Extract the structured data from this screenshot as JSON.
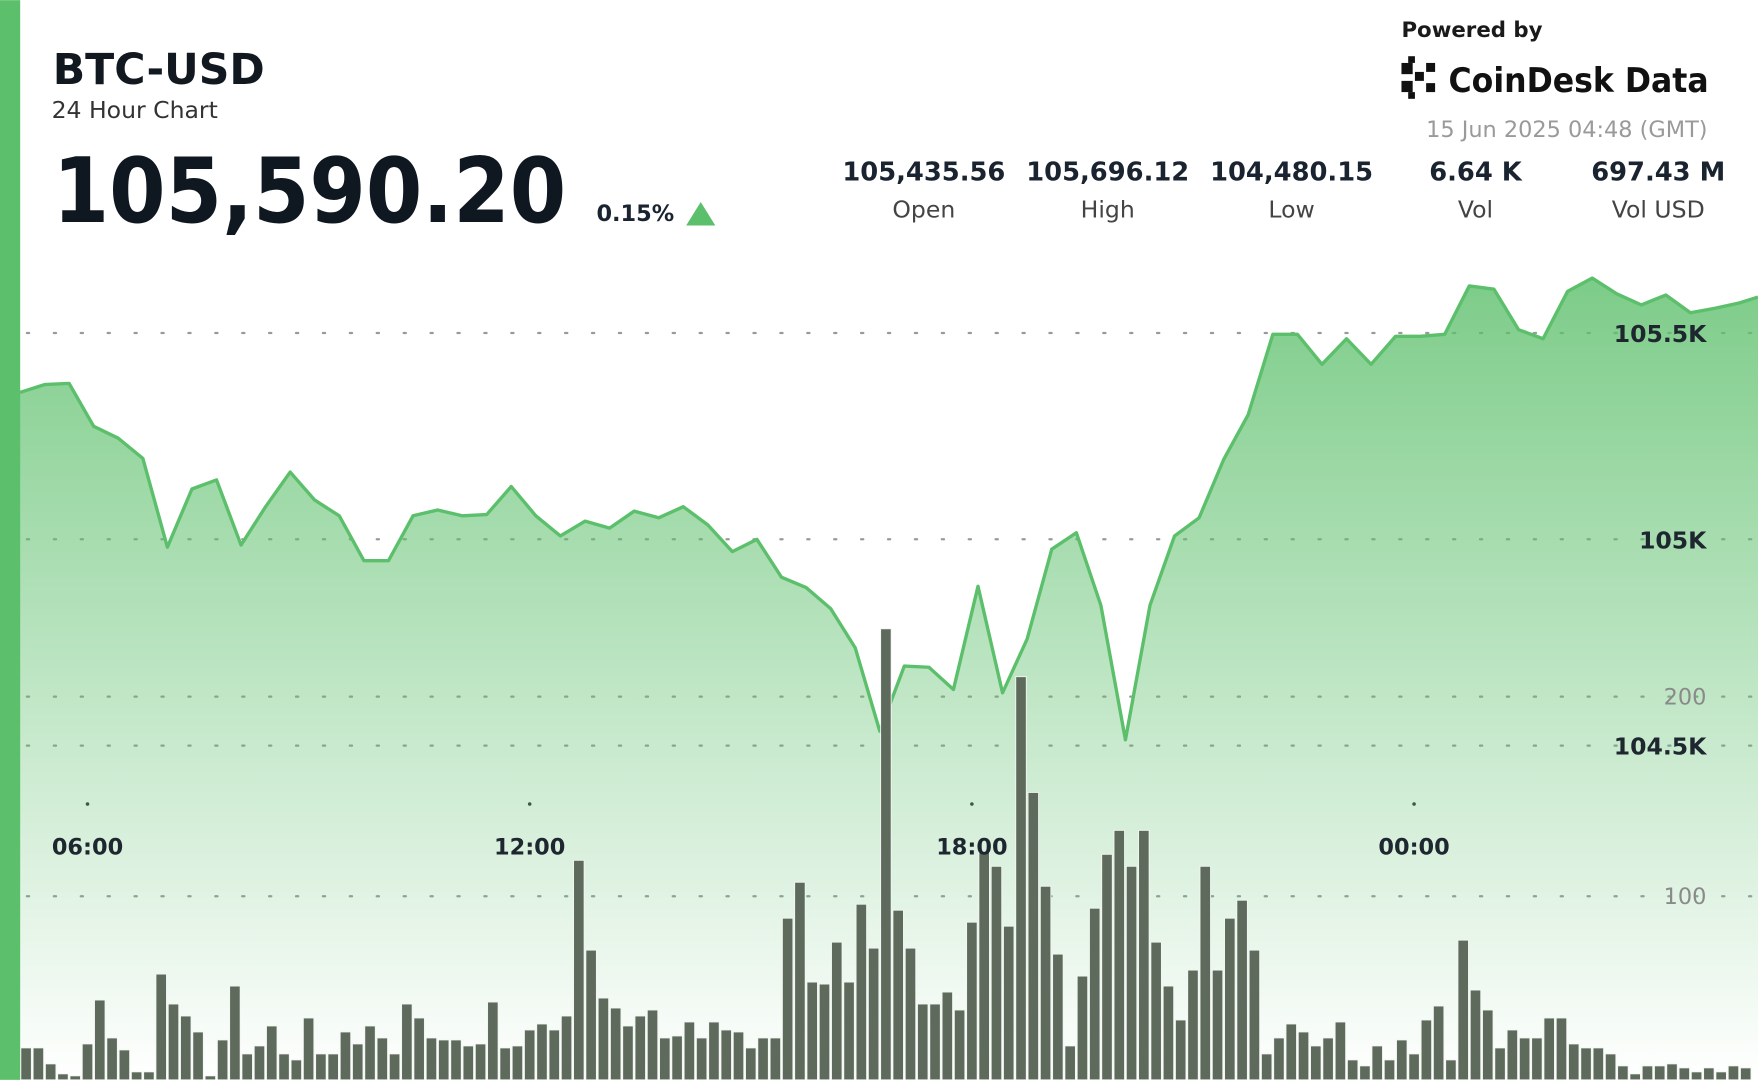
{
  "header": {
    "price": "105,590.20",
    "change": "0.15%",
    "stats": [
      {
        "value": "105,435.56",
        "label": "Open"
      },
      {
        "value": "105,696.12",
        "label": "High"
      },
      {
        "value": "104,480.15",
        "label": "Low"
      },
      {
        "value": "6.64 K",
        "label": "Vol"
      },
      {
        "value": "697.43 M",
        "label": "Vol USD"
      }
    ],
    "powered_by": "Powered by",
    "brand": "CoinDesk Data",
    "timestamp": "15 Jun 2025 04:48 (GMT)"
  },
  "chart_data": [
    {
      "type": "line",
      "title": "BTC-USD",
      "subtitle": "24 Hour Chart",
      "color": "#5cbf6b",
      "x": [
        "05:05",
        "05:25",
        "05:45",
        "06:05",
        "06:25",
        "06:45",
        "07:05",
        "07:25",
        "07:45",
        "08:05",
        "08:25",
        "08:45",
        "09:05",
        "09:25",
        "09:45",
        "10:05",
        "10:25",
        "10:45",
        "11:05",
        "11:25",
        "11:45",
        "12:05",
        "12:25",
        "12:45",
        "13:05",
        "13:25",
        "13:45",
        "14:05",
        "14:25",
        "14:45",
        "15:05",
        "15:25",
        "15:45",
        "16:05",
        "16:25",
        "16:45",
        "17:05",
        "17:25",
        "17:45",
        "18:05",
        "18:25",
        "18:45",
        "19:05",
        "19:25",
        "19:45",
        "20:05",
        "20:25",
        "20:45",
        "21:05",
        "21:25",
        "21:45",
        "22:05",
        "22:25",
        "22:45",
        "23:05",
        "23:25",
        "23:45",
        "00:05",
        "00:25",
        "00:45",
        "01:05",
        "01:25",
        "01:45",
        "02:05",
        "02:25",
        "02:45",
        "03:05",
        "03:25",
        "03:45",
        "04:05",
        "04:25",
        "04:40"
      ],
      "values": [
        105356,
        105375,
        105378,
        105274,
        105245,
        105196,
        104981,
        105122,
        105144,
        104986,
        105079,
        105163,
        105095,
        105057,
        104948,
        104948,
        105057,
        105071,
        105057,
        105060,
        105128,
        105057,
        105008,
        105044,
        105027,
        105068,
        105052,
        105079,
        105035,
        104970,
        105000,
        104908,
        104883,
        104832,
        104737,
        104535,
        104693,
        104690,
        104636,
        104886,
        104628,
        104758,
        104976,
        105016,
        104840,
        104514,
        104840,
        105008,
        105052,
        105193,
        105302,
        105497,
        105497,
        105424,
        105486,
        105424,
        105492,
        105492,
        105497,
        105614,
        105606,
        105508,
        105486,
        105601,
        105633,
        105595,
        105568,
        105592,
        105549,
        105560,
        105573,
        105587
      ],
      "xlim": [
        "05:05",
        "04:40"
      ],
      "xticks": [
        "06:00",
        "12:00",
        "18:00",
        "00:00"
      ],
      "ylim": [
        103690,
        105736
      ],
      "yticks": [
        {
          "value": 104500,
          "label": "104.5K"
        },
        {
          "value": 105000,
          "label": "105K"
        },
        {
          "value": 105500,
          "label": "105.5K"
        }
      ],
      "grid": true
    },
    {
      "type": "bar",
      "color": "#5e6a5c",
      "x": [
        "05:10",
        "05:20",
        "05:30",
        "05:40",
        "05:50",
        "06:00",
        "06:10",
        "06:20",
        "06:30",
        "06:40",
        "06:50",
        "07:00",
        "07:10",
        "07:20",
        "07:30",
        "07:40",
        "07:50",
        "08:00",
        "08:10",
        "08:20",
        "08:30",
        "08:40",
        "08:50",
        "09:00",
        "09:10",
        "09:20",
        "09:30",
        "09:40",
        "09:50",
        "10:00",
        "10:10",
        "10:20",
        "10:30",
        "10:40",
        "10:50",
        "11:00",
        "11:10",
        "11:20",
        "11:30",
        "11:40",
        "11:50",
        "12:00",
        "12:10",
        "12:20",
        "12:30",
        "12:40",
        "12:50",
        "13:00",
        "13:10",
        "13:20",
        "13:30",
        "13:40",
        "13:50",
        "14:00",
        "14:10",
        "14:20",
        "14:30",
        "14:40",
        "14:50",
        "15:00",
        "15:10",
        "15:20",
        "15:30",
        "15:40",
        "15:50",
        "16:00",
        "16:10",
        "16:20",
        "16:30",
        "16:40",
        "16:50",
        "17:00",
        "17:10",
        "17:20",
        "17:30",
        "17:40",
        "17:50",
        "18:00",
        "18:10",
        "18:20",
        "18:30",
        "18:40",
        "18:50",
        "19:00",
        "19:10",
        "19:20",
        "19:30",
        "19:40",
        "19:50",
        "20:00",
        "20:10",
        "20:20",
        "20:30",
        "20:40",
        "20:50",
        "21:00",
        "21:10",
        "21:20",
        "21:30",
        "21:40",
        "21:50",
        "22:00",
        "22:10",
        "22:20",
        "22:30",
        "22:40",
        "22:50",
        "23:00",
        "23:10",
        "23:20",
        "23:30",
        "23:40",
        "23:50",
        "00:00",
        "00:10",
        "00:20",
        "00:30",
        "00:40",
        "00:50",
        "01:00",
        "01:10",
        "01:20",
        "01:30",
        "01:40",
        "01:50",
        "02:00",
        "02:10",
        "02:20",
        "02:30",
        "02:40",
        "02:50",
        "03:00",
        "03:10",
        "03:20",
        "03:30",
        "03:40",
        "03:50",
        "04:00",
        "04:10",
        "04:20",
        "04:30"
      ],
      "values": [
        24,
        24,
        16,
        11,
        10,
        26,
        48,
        29,
        23,
        12,
        12,
        61,
        46,
        40,
        32,
        10,
        28,
        55,
        21,
        25,
        35,
        21,
        18,
        39,
        21,
        21,
        32,
        26,
        35,
        29,
        21,
        46,
        39,
        29,
        28,
        28,
        25,
        26,
        47,
        24,
        25,
        33,
        36,
        33,
        40,
        118,
        73,
        49,
        44,
        35,
        40,
        43,
        29,
        30,
        37,
        29,
        37,
        33,
        32,
        24,
        29,
        29,
        89,
        107,
        57,
        56,
        77,
        57,
        96,
        74,
        234,
        93,
        74,
        46,
        46,
        52,
        43,
        87,
        122,
        115,
        85,
        210,
        152,
        105,
        71,
        25,
        60,
        94,
        121,
        133,
        115,
        133,
        77,
        55,
        38,
        63,
        115,
        63,
        89,
        98,
        73,
        21,
        29,
        36,
        32,
        25,
        29,
        37,
        18,
        15,
        25,
        18,
        28,
        21,
        38,
        45,
        18,
        78,
        53,
        43,
        24,
        33,
        29,
        29,
        39,
        39,
        26,
        24,
        24,
        21,
        15,
        11,
        15,
        15,
        16,
        14,
        12,
        14,
        12,
        15,
        14
      ],
      "xlim": [
        "05:05",
        "04:40"
      ],
      "ylim": [
        8,
        431
      ],
      "yticks": [
        100,
        200
      ],
      "grid": true
    }
  ]
}
